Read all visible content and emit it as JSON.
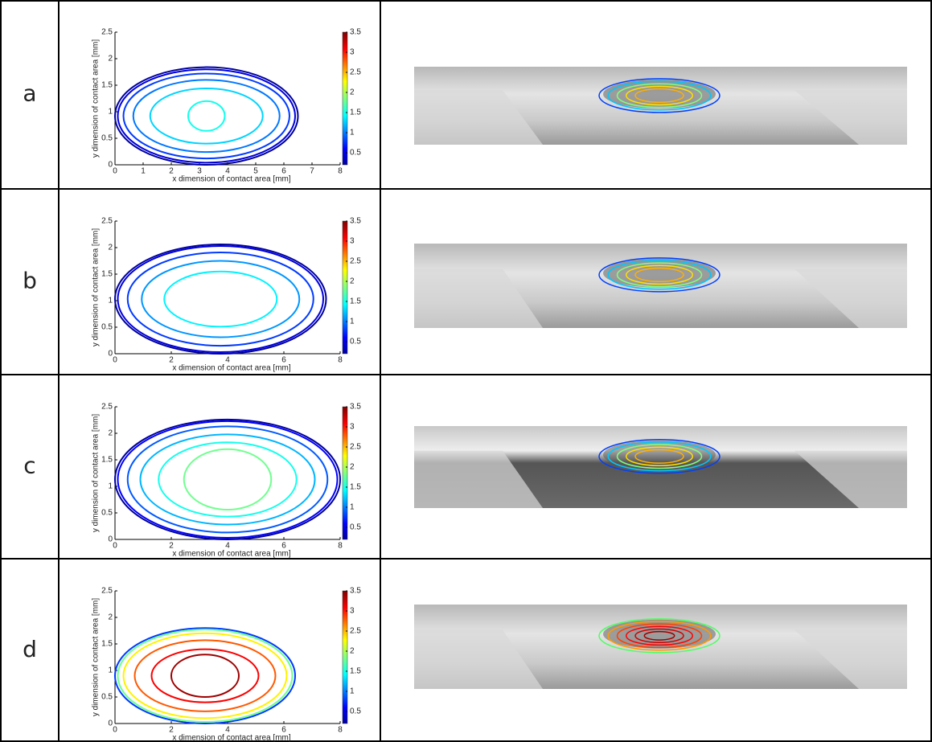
{
  "panel_labels": [
    "a",
    "b",
    "c",
    "d"
  ],
  "chart_data": [
    {
      "type": "contour",
      "xlabel": "x dimension of contact area [mm]",
      "ylabel": "y dimension of contact area [mm]",
      "xlim": [
        0,
        8
      ],
      "ylim": [
        0,
        2.5
      ],
      "xticks": [
        0,
        1,
        2,
        3,
        4,
        5,
        6,
        7,
        8
      ],
      "yticks": [
        0,
        0.5,
        1,
        1.5,
        2,
        2.5
      ],
      "colormap": "jet",
      "clim": [
        0.2,
        3.5
      ],
      "cticks": [
        0.5,
        1,
        1.5,
        2,
        2.5,
        3,
        3.5
      ],
      "contours": [
        {
          "level": 0.3,
          "cx": 3.25,
          "cy": 0.92,
          "rx": 3.25,
          "ry": 0.92
        },
        {
          "level": 0.5,
          "cx": 3.25,
          "cy": 0.92,
          "rx": 3.15,
          "ry": 0.88
        },
        {
          "level": 0.8,
          "cx": 3.25,
          "cy": 0.92,
          "rx": 2.95,
          "ry": 0.8
        },
        {
          "level": 1.0,
          "cx": 3.25,
          "cy": 0.92,
          "rx": 2.6,
          "ry": 0.68
        },
        {
          "level": 1.3,
          "cx": 3.25,
          "cy": 0.92,
          "rx": 2.0,
          "ry": 0.52
        },
        {
          "level": 1.5,
          "cx": 3.25,
          "cy": 0.92,
          "rx": 0.65,
          "ry": 0.28
        }
      ]
    },
    {
      "type": "contour",
      "xlabel": "x dimension of contact area [mm]",
      "ylabel": "y dimension of contact area [mm]",
      "xlim": [
        0,
        8
      ],
      "ylim": [
        0,
        2.5
      ],
      "xticks": [
        0,
        2,
        4,
        6,
        8
      ],
      "yticks": [
        0,
        0.5,
        1,
        1.5,
        2,
        2.5
      ],
      "colormap": "jet",
      "clim": [
        0.2,
        3.5
      ],
      "cticks": [
        0.5,
        1,
        1.5,
        2,
        2.5,
        3,
        3.5
      ],
      "contours": [
        {
          "level": 0.3,
          "cx": 3.75,
          "cy": 1.03,
          "rx": 3.75,
          "ry": 1.03
        },
        {
          "level": 0.5,
          "cx": 3.75,
          "cy": 1.03,
          "rx": 3.65,
          "ry": 1.0
        },
        {
          "level": 0.8,
          "cx": 3.75,
          "cy": 1.03,
          "rx": 3.3,
          "ry": 0.88
        },
        {
          "level": 1.1,
          "cx": 3.75,
          "cy": 1.03,
          "rx": 2.8,
          "ry": 0.72
        },
        {
          "level": 1.4,
          "cx": 3.75,
          "cy": 1.03,
          "rx": 2.0,
          "ry": 0.52
        }
      ]
    },
    {
      "type": "contour",
      "xlabel": "x dimension of contact area [mm]",
      "ylabel": "y dimension of contact area [mm]",
      "xlim": [
        0,
        8
      ],
      "ylim": [
        0,
        2.5
      ],
      "xticks": [
        0,
        2,
        4,
        6,
        8
      ],
      "yticks": [
        0,
        0.5,
        1,
        1.5,
        2,
        2.5
      ],
      "colormap": "jet",
      "clim": [
        0.2,
        3.5
      ],
      "cticks": [
        0.5,
        1,
        1.5,
        2,
        2.5,
        3,
        3.5
      ],
      "contours": [
        {
          "level": 0.3,
          "cx": 4.0,
          "cy": 1.13,
          "rx": 4.0,
          "ry": 1.13
        },
        {
          "level": 0.6,
          "cx": 4.0,
          "cy": 1.13,
          "rx": 3.9,
          "ry": 1.1
        },
        {
          "level": 0.9,
          "cx": 4.0,
          "cy": 1.13,
          "rx": 3.55,
          "ry": 1.0
        },
        {
          "level": 1.2,
          "cx": 4.0,
          "cy": 1.13,
          "rx": 3.1,
          "ry": 0.85
        },
        {
          "level": 1.5,
          "cx": 4.0,
          "cy": 1.13,
          "rx": 2.45,
          "ry": 0.7
        },
        {
          "level": 1.8,
          "cx": 4.0,
          "cy": 1.13,
          "rx": 1.55,
          "ry": 0.57
        }
      ]
    },
    {
      "type": "contour",
      "xlabel": "x dimension of contact area [mm]",
      "ylabel": "y dimension of contact area [mm]",
      "xlim": [
        0,
        8
      ],
      "ylim": [
        0,
        2.5
      ],
      "xticks": [
        0,
        2,
        4,
        6,
        8
      ],
      "yticks": [
        0,
        0.5,
        1,
        1.5,
        2,
        2.5
      ],
      "colormap": "jet",
      "clim": [
        0.2,
        3.5
      ],
      "cticks": [
        0.5,
        1,
        1.5,
        2,
        2.5,
        3,
        3.5
      ],
      "contours": [
        {
          "level": 0.8,
          "cx": 3.2,
          "cy": 0.9,
          "rx": 3.2,
          "ry": 0.9
        },
        {
          "level": 1.8,
          "cx": 3.2,
          "cy": 0.9,
          "rx": 3.1,
          "ry": 0.87
        },
        {
          "level": 2.3,
          "cx": 3.2,
          "cy": 0.9,
          "rx": 2.9,
          "ry": 0.8
        },
        {
          "level": 2.8,
          "cx": 3.2,
          "cy": 0.9,
          "rx": 2.5,
          "ry": 0.67
        },
        {
          "level": 3.1,
          "cx": 3.2,
          "cy": 0.9,
          "rx": 1.9,
          "ry": 0.5
        },
        {
          "level": 3.4,
          "cx": 3.2,
          "cy": 0.9,
          "rx": 1.2,
          "ry": 0.4
        }
      ]
    }
  ]
}
